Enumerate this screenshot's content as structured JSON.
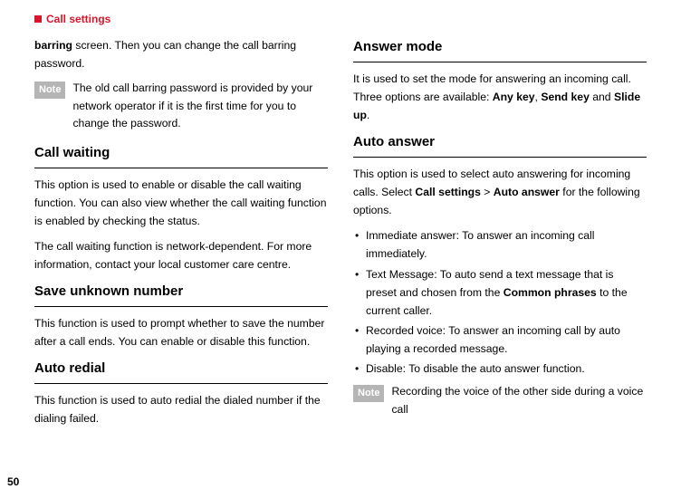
{
  "header": {
    "title": "Call settings"
  },
  "left": {
    "intro": {
      "prefix_bold": "barring",
      "rest": " screen. Then you can change the call barring password."
    },
    "note1": {
      "label": "Note",
      "text": "The old call barring password is provided by your network operator if it is the first time for you to change the password."
    },
    "h1": "Call waiting",
    "p1": "This option is used to enable or disable the call waiting function. You can also view whether the call waiting function is enabled by checking the status.",
    "p2": "The call waiting function is network-dependent. For more information, contact your local customer care centre.",
    "h2": "Save unknown number",
    "p3": "This function is used to prompt whether to save the number after a call ends. You can enable or disable this function.",
    "h3": "Auto redial",
    "p4": "This function is used to auto redial the dialed number if the dialing failed."
  },
  "right": {
    "h1": "Answer mode",
    "p1_a": "It is used to set the mode for answering an incoming call. Three options are available: ",
    "p1_b1": "Any key",
    "p1_sep1": ", ",
    "p1_b2": "Send key",
    "p1_sep2": " and ",
    "p1_b3": "Slide up",
    "p1_end": ".",
    "h2": "Auto answer",
    "p2_a": "This option is used to select auto answering for incoming calls. Select ",
    "p2_b1": "Call settings",
    "p2_gt": " > ",
    "p2_b2": "Auto answer",
    "p2_end": " for the following options.",
    "bullets": {
      "b1": "Immediate answer: To answer an incoming call immediately.",
      "b2_a": "Text Message: To auto send a text message that is preset and chosen from the ",
      "b2_bold": "Common phrases",
      "b2_b": " to the current caller.",
      "b3": "Recorded voice: To answer an incoming call by auto playing a recorded message.",
      "b4": "Disable: To disable the auto answer function."
    },
    "note2": {
      "label": "Note",
      "text": "Recording the voice of the other side during a voice call"
    }
  },
  "page_number": "50"
}
